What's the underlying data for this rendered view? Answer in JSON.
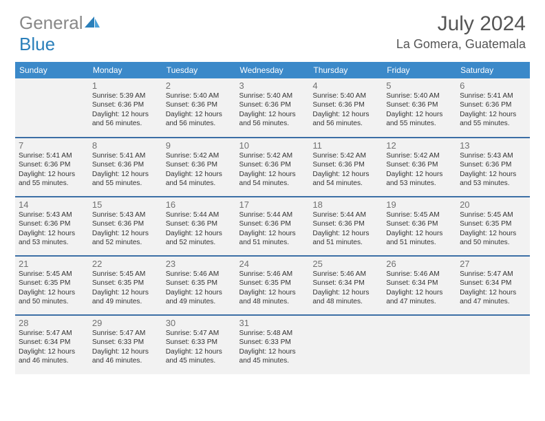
{
  "brand": {
    "part1": "General",
    "part2": "Blue"
  },
  "title": "July 2024",
  "location": "La Gomera, Guatemala",
  "colors": {
    "header_bg": "#3b89c9",
    "row_divider": "#3b6ea5",
    "cell_bg": "#f2f2f2",
    "text": "#333333",
    "daynum": "#707070",
    "logo_gray": "#888888",
    "logo_blue": "#2a7fba"
  },
  "day_headers": [
    "Sunday",
    "Monday",
    "Tuesday",
    "Wednesday",
    "Thursday",
    "Friday",
    "Saturday"
  ],
  "weeks": [
    [
      null,
      {
        "n": "1",
        "sr": "Sunrise: 5:39 AM",
        "ss": "Sunset: 6:36 PM",
        "dl1": "Daylight: 12 hours",
        "dl2": "and 56 minutes."
      },
      {
        "n": "2",
        "sr": "Sunrise: 5:40 AM",
        "ss": "Sunset: 6:36 PM",
        "dl1": "Daylight: 12 hours",
        "dl2": "and 56 minutes."
      },
      {
        "n": "3",
        "sr": "Sunrise: 5:40 AM",
        "ss": "Sunset: 6:36 PM",
        "dl1": "Daylight: 12 hours",
        "dl2": "and 56 minutes."
      },
      {
        "n": "4",
        "sr": "Sunrise: 5:40 AM",
        "ss": "Sunset: 6:36 PM",
        "dl1": "Daylight: 12 hours",
        "dl2": "and 56 minutes."
      },
      {
        "n": "5",
        "sr": "Sunrise: 5:40 AM",
        "ss": "Sunset: 6:36 PM",
        "dl1": "Daylight: 12 hours",
        "dl2": "and 55 minutes."
      },
      {
        "n": "6",
        "sr": "Sunrise: 5:41 AM",
        "ss": "Sunset: 6:36 PM",
        "dl1": "Daylight: 12 hours",
        "dl2": "and 55 minutes."
      }
    ],
    [
      {
        "n": "7",
        "sr": "Sunrise: 5:41 AM",
        "ss": "Sunset: 6:36 PM",
        "dl1": "Daylight: 12 hours",
        "dl2": "and 55 minutes."
      },
      {
        "n": "8",
        "sr": "Sunrise: 5:41 AM",
        "ss": "Sunset: 6:36 PM",
        "dl1": "Daylight: 12 hours",
        "dl2": "and 55 minutes."
      },
      {
        "n": "9",
        "sr": "Sunrise: 5:42 AM",
        "ss": "Sunset: 6:36 PM",
        "dl1": "Daylight: 12 hours",
        "dl2": "and 54 minutes."
      },
      {
        "n": "10",
        "sr": "Sunrise: 5:42 AM",
        "ss": "Sunset: 6:36 PM",
        "dl1": "Daylight: 12 hours",
        "dl2": "and 54 minutes."
      },
      {
        "n": "11",
        "sr": "Sunrise: 5:42 AM",
        "ss": "Sunset: 6:36 PM",
        "dl1": "Daylight: 12 hours",
        "dl2": "and 54 minutes."
      },
      {
        "n": "12",
        "sr": "Sunrise: 5:42 AM",
        "ss": "Sunset: 6:36 PM",
        "dl1": "Daylight: 12 hours",
        "dl2": "and 53 minutes."
      },
      {
        "n": "13",
        "sr": "Sunrise: 5:43 AM",
        "ss": "Sunset: 6:36 PM",
        "dl1": "Daylight: 12 hours",
        "dl2": "and 53 minutes."
      }
    ],
    [
      {
        "n": "14",
        "sr": "Sunrise: 5:43 AM",
        "ss": "Sunset: 6:36 PM",
        "dl1": "Daylight: 12 hours",
        "dl2": "and 53 minutes."
      },
      {
        "n": "15",
        "sr": "Sunrise: 5:43 AM",
        "ss": "Sunset: 6:36 PM",
        "dl1": "Daylight: 12 hours",
        "dl2": "and 52 minutes."
      },
      {
        "n": "16",
        "sr": "Sunrise: 5:44 AM",
        "ss": "Sunset: 6:36 PM",
        "dl1": "Daylight: 12 hours",
        "dl2": "and 52 minutes."
      },
      {
        "n": "17",
        "sr": "Sunrise: 5:44 AM",
        "ss": "Sunset: 6:36 PM",
        "dl1": "Daylight: 12 hours",
        "dl2": "and 51 minutes."
      },
      {
        "n": "18",
        "sr": "Sunrise: 5:44 AM",
        "ss": "Sunset: 6:36 PM",
        "dl1": "Daylight: 12 hours",
        "dl2": "and 51 minutes."
      },
      {
        "n": "19",
        "sr": "Sunrise: 5:45 AM",
        "ss": "Sunset: 6:36 PM",
        "dl1": "Daylight: 12 hours",
        "dl2": "and 51 minutes."
      },
      {
        "n": "20",
        "sr": "Sunrise: 5:45 AM",
        "ss": "Sunset: 6:35 PM",
        "dl1": "Daylight: 12 hours",
        "dl2": "and 50 minutes."
      }
    ],
    [
      {
        "n": "21",
        "sr": "Sunrise: 5:45 AM",
        "ss": "Sunset: 6:35 PM",
        "dl1": "Daylight: 12 hours",
        "dl2": "and 50 minutes."
      },
      {
        "n": "22",
        "sr": "Sunrise: 5:45 AM",
        "ss": "Sunset: 6:35 PM",
        "dl1": "Daylight: 12 hours",
        "dl2": "and 49 minutes."
      },
      {
        "n": "23",
        "sr": "Sunrise: 5:46 AM",
        "ss": "Sunset: 6:35 PM",
        "dl1": "Daylight: 12 hours",
        "dl2": "and 49 minutes."
      },
      {
        "n": "24",
        "sr": "Sunrise: 5:46 AM",
        "ss": "Sunset: 6:35 PM",
        "dl1": "Daylight: 12 hours",
        "dl2": "and 48 minutes."
      },
      {
        "n": "25",
        "sr": "Sunrise: 5:46 AM",
        "ss": "Sunset: 6:34 PM",
        "dl1": "Daylight: 12 hours",
        "dl2": "and 48 minutes."
      },
      {
        "n": "26",
        "sr": "Sunrise: 5:46 AM",
        "ss": "Sunset: 6:34 PM",
        "dl1": "Daylight: 12 hours",
        "dl2": "and 47 minutes."
      },
      {
        "n": "27",
        "sr": "Sunrise: 5:47 AM",
        "ss": "Sunset: 6:34 PM",
        "dl1": "Daylight: 12 hours",
        "dl2": "and 47 minutes."
      }
    ],
    [
      {
        "n": "28",
        "sr": "Sunrise: 5:47 AM",
        "ss": "Sunset: 6:34 PM",
        "dl1": "Daylight: 12 hours",
        "dl2": "and 46 minutes."
      },
      {
        "n": "29",
        "sr": "Sunrise: 5:47 AM",
        "ss": "Sunset: 6:33 PM",
        "dl1": "Daylight: 12 hours",
        "dl2": "and 46 minutes."
      },
      {
        "n": "30",
        "sr": "Sunrise: 5:47 AM",
        "ss": "Sunset: 6:33 PM",
        "dl1": "Daylight: 12 hours",
        "dl2": "and 45 minutes."
      },
      {
        "n": "31",
        "sr": "Sunrise: 5:48 AM",
        "ss": "Sunset: 6:33 PM",
        "dl1": "Daylight: 12 hours",
        "dl2": "and 45 minutes."
      },
      null,
      null,
      null
    ]
  ]
}
